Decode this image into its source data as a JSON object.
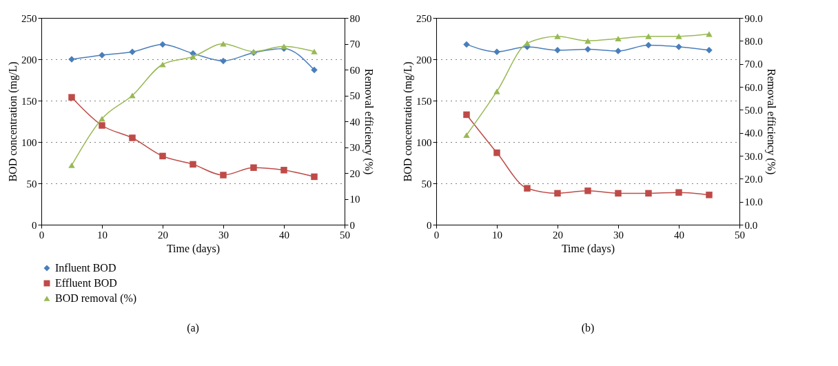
{
  "chart_data": [
    {
      "type": "line",
      "xlabel": "Time (days)",
      "ylabel": "BOD concentration (mg/L)",
      "y2label": "Removal efficiency (%)",
      "x": [
        5,
        10,
        15,
        20,
        25,
        30,
        35,
        40,
        45
      ],
      "xlim": [
        0,
        50
      ],
      "xticks": [
        0,
        10,
        20,
        30,
        40,
        50
      ],
      "ylim": [
        0,
        250
      ],
      "yticks": [
        0,
        50,
        100,
        150,
        200,
        250
      ],
      "y2lim": [
        0,
        80
      ],
      "y2ticks": [
        0,
        10,
        20,
        30,
        40,
        50,
        60,
        70,
        80
      ],
      "grid": "y",
      "legend": "bottom",
      "annotations": [
        "(a)"
      ],
      "series": [
        {
          "name": "Influent BOD",
          "color": "#4a7ebb",
          "marker": "diamond",
          "values": [
            200,
            205,
            209,
            218,
            207,
            198,
            208,
            213,
            187
          ]
        },
        {
          "name": "Effluent BOD",
          "color": "#be4b48",
          "marker": "square",
          "values": [
            154,
            120,
            105,
            83,
            73,
            60,
            69,
            66,
            58
          ]
        },
        {
          "name": "BOD removal (%)",
          "color": "#98b954",
          "marker": "triangle",
          "axis": "y2",
          "values": [
            23,
            41,
            50,
            62,
            65,
            70,
            67,
            69,
            67
          ]
        }
      ]
    },
    {
      "type": "line",
      "xlabel": "Time (days)",
      "ylabel": "BOD concentration (mg/L)",
      "y2label": "Removal efficiency (%)",
      "x": [
        5,
        10,
        15,
        20,
        25,
        30,
        35,
        40,
        45
      ],
      "xlim": [
        0,
        50
      ],
      "xticks": [
        0,
        10,
        20,
        30,
        40,
        50
      ],
      "ylim": [
        0,
        250
      ],
      "yticks": [
        0,
        50,
        100,
        150,
        200,
        250
      ],
      "y2lim": [
        0,
        90
      ],
      "y2ticks": [
        {
          "value": 0,
          "label": "0.0"
        },
        {
          "value": 10,
          "label": "10.0"
        },
        {
          "value": 20,
          "label": "20.0"
        },
        {
          "value": 30,
          "label": "30.0"
        },
        {
          "value": 40,
          "label": "40.0"
        },
        {
          "value": 50,
          "label": "50.0"
        },
        {
          "value": 60,
          "label": "60.0"
        },
        {
          "value": 70,
          "label": "70.0"
        },
        {
          "value": 80,
          "label": "80.0"
        },
        {
          "value": 90,
          "label": "90.0"
        }
      ],
      "grid": "y",
      "legend": "bottom",
      "annotations": [
        "(b)"
      ],
      "series": [
        {
          "name": "Influent BOD",
          "color": "#4a7ebb",
          "marker": "diamond",
          "values": [
            218,
            209,
            215,
            211,
            212,
            210,
            217,
            215,
            211
          ]
        },
        {
          "name": "Effluent BOD",
          "color": "#be4b48",
          "marker": "square",
          "values": [
            133,
            87,
            44,
            38,
            41,
            38,
            38,
            39,
            36
          ]
        },
        {
          "name": "BOD removal (%)",
          "color": "#98b954",
          "marker": "triangle",
          "axis": "y2",
          "values": [
            39,
            58,
            79,
            82,
            80,
            81,
            82,
            82,
            83
          ]
        }
      ]
    }
  ]
}
